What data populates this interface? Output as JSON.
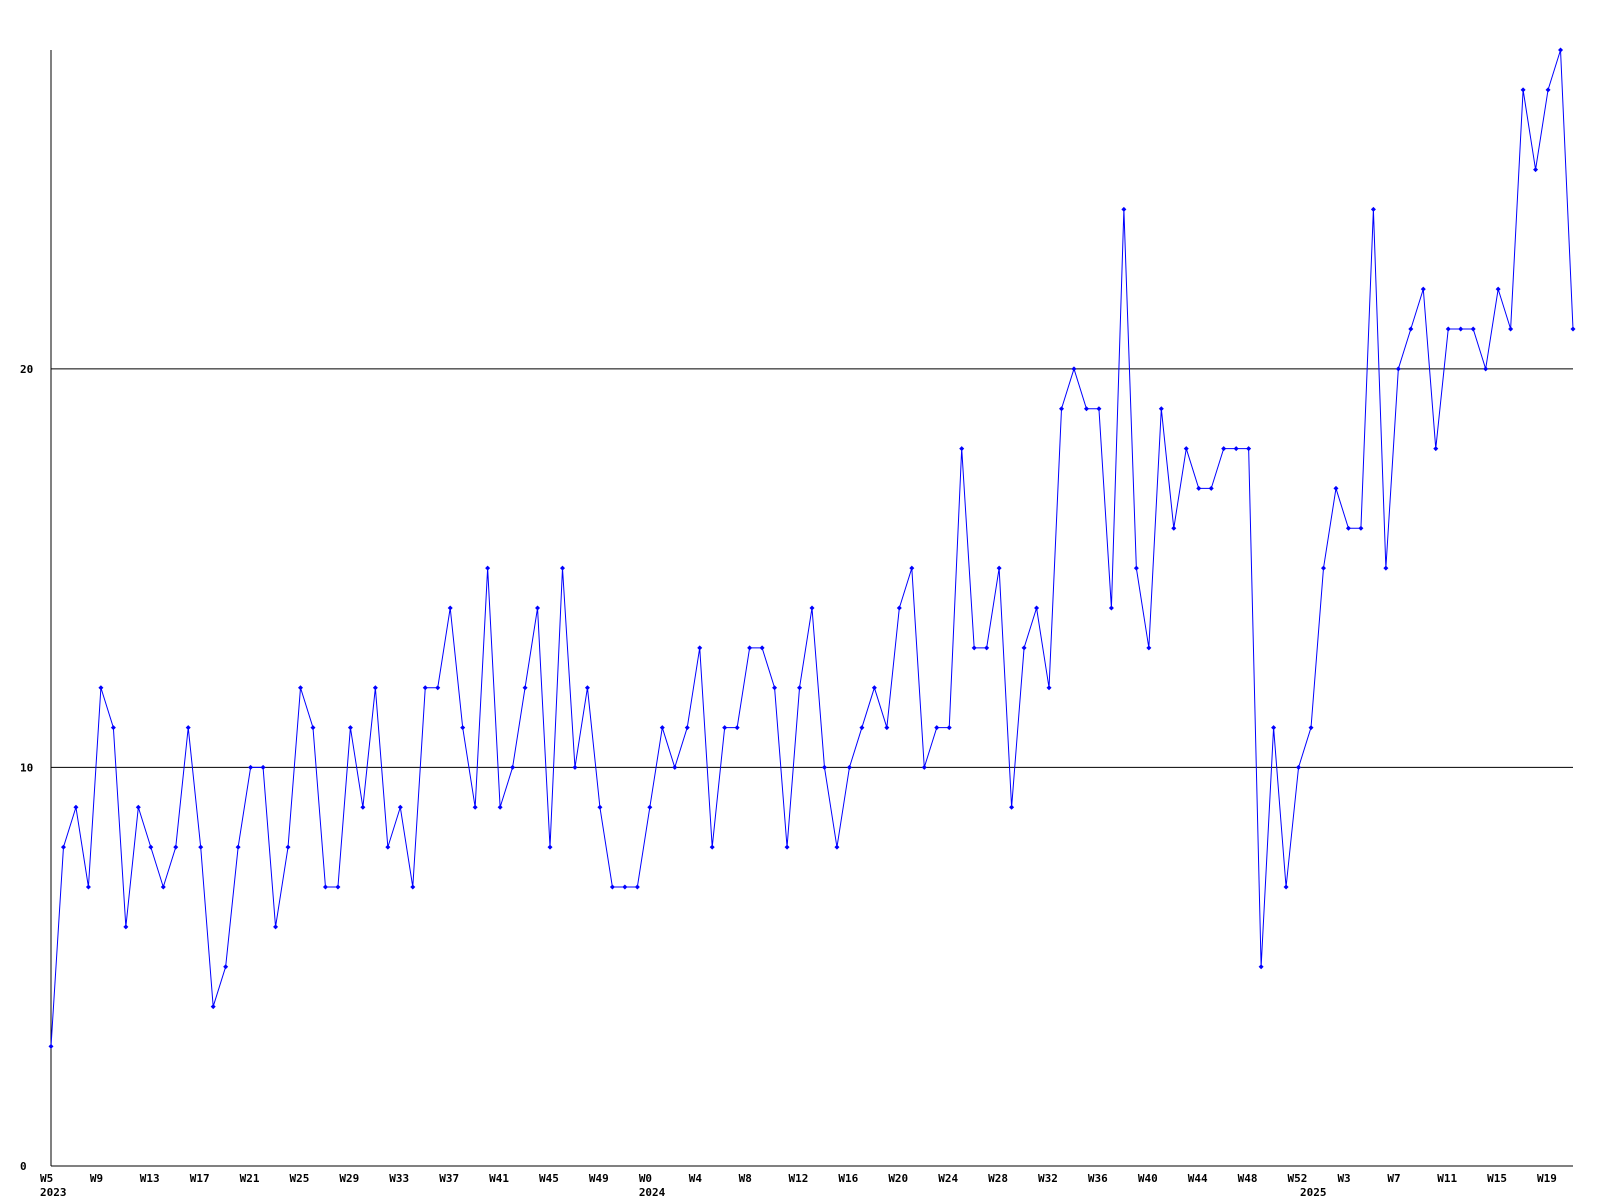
{
  "chart_data": {
    "type": "line",
    "categories": [
      "W5",
      null,
      null,
      null,
      "W9",
      null,
      null,
      null,
      "W13",
      null,
      null,
      null,
      "W17",
      null,
      null,
      null,
      "W21",
      null,
      null,
      null,
      "W25",
      null,
      null,
      null,
      "W29",
      null,
      null,
      null,
      "W33",
      null,
      null,
      null,
      "W37",
      null,
      null,
      null,
      "W41",
      null,
      null,
      null,
      "W45",
      null,
      null,
      null,
      "W49",
      null,
      null,
      null,
      "W0",
      null,
      null,
      null,
      "W4",
      null,
      null,
      null,
      "W8",
      null,
      null,
      null,
      "W12",
      null,
      null,
      null,
      "W16",
      null,
      null,
      null,
      "W20",
      null,
      null,
      null,
      "W24",
      null,
      null,
      null,
      "W28",
      null,
      null,
      null,
      "W32",
      null,
      null,
      null,
      "W36",
      null,
      null,
      null,
      "W40",
      null,
      null,
      null,
      "W44",
      null,
      null,
      null,
      "W48",
      null,
      null,
      null,
      "W52",
      null,
      null,
      null,
      "W3",
      null,
      null,
      null,
      "W7",
      null,
      null,
      null,
      "W11",
      null,
      null,
      null,
      "W15",
      null,
      null,
      null,
      "W19",
      null,
      null
    ],
    "year_labels": [
      "2023",
      null,
      null,
      null,
      null,
      null,
      null,
      null,
      null,
      null,
      null,
      null,
      null,
      null,
      null,
      null,
      null,
      null,
      null,
      null,
      null,
      null,
      null,
      null,
      null,
      null,
      null,
      null,
      null,
      null,
      null,
      null,
      null,
      null,
      null,
      null,
      null,
      null,
      null,
      null,
      null,
      null,
      null,
      null,
      null,
      null,
      null,
      null,
      "2024",
      null,
      null,
      null,
      null,
      null,
      null,
      null,
      null,
      null,
      null,
      null,
      null,
      null,
      null,
      null,
      null,
      null,
      null,
      null,
      null,
      null,
      null,
      null,
      null,
      null,
      null,
      null,
      null,
      null,
      null,
      null,
      null,
      null,
      null,
      null,
      null,
      null,
      null,
      null,
      null,
      null,
      null,
      null,
      null,
      null,
      null,
      null,
      null,
      null,
      null,
      null,
      null,
      "2025",
      null,
      null,
      null,
      null,
      null,
      null,
      null,
      null,
      null,
      null,
      null,
      null,
      null,
      null,
      null,
      null,
      null,
      null,
      null,
      null,
      null
    ],
    "series": [
      {
        "color": "#0000ff",
        "values": [
          3,
          8,
          9,
          7,
          12,
          11,
          6,
          9,
          8,
          7,
          8,
          11,
          8,
          4,
          5,
          8,
          10,
          10,
          6,
          8,
          12,
          11,
          7,
          7,
          11,
          9,
          12,
          8,
          9,
          7,
          12,
          12,
          14,
          11,
          9,
          15,
          9,
          10,
          12,
          14,
          8,
          15,
          10,
          12,
          9,
          7,
          7,
          7,
          9,
          11,
          10,
          11,
          13,
          8,
          11,
          11,
          13,
          13,
          12,
          8,
          12,
          14,
          10,
          8,
          10,
          11,
          12,
          11,
          14,
          15,
          10,
          11,
          11,
          18,
          13,
          13,
          15,
          9,
          13,
          14,
          12,
          19,
          20,
          19,
          19,
          14,
          24,
          15,
          13,
          19,
          16,
          18,
          17,
          17,
          18,
          18,
          18,
          5,
          11,
          7,
          10,
          11,
          15,
          17,
          16,
          16,
          24,
          15,
          20,
          21,
          22,
          18,
          21,
          21,
          21,
          20,
          22,
          21,
          27,
          25,
          27,
          28,
          21
        ]
      }
    ],
    "ylim": [
      0,
      28
    ],
    "yticks": [
      0,
      10,
      20
    ],
    "grid": true
  }
}
